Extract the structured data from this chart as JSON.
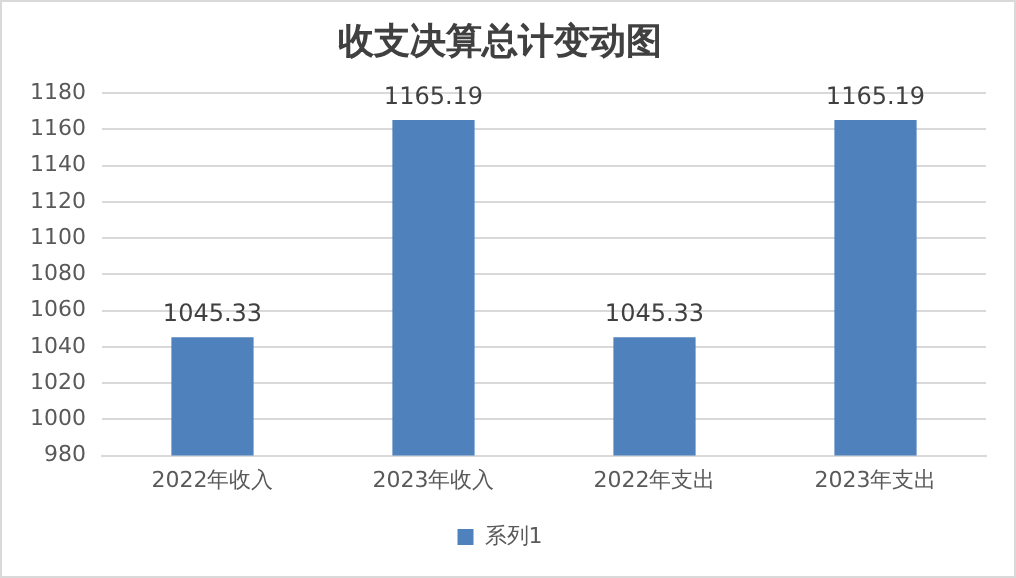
{
  "chart_data": {
    "type": "bar",
    "title": "收支决算总计变动图",
    "categories": [
      "2022年收入",
      "2023年收入",
      "2022年支出",
      "2023年支出"
    ],
    "series": [
      {
        "name": "系列1",
        "color": "#4f81bd",
        "values": [
          1045.33,
          1165.19,
          1045.33,
          1165.19
        ]
      }
    ],
    "ylim": [
      980,
      1180
    ],
    "yticks": [
      980,
      1000,
      1020,
      1040,
      1060,
      1080,
      1100,
      1120,
      1140,
      1160,
      1180
    ],
    "grid": "y",
    "legend": "bottom",
    "data_labels": true
  }
}
